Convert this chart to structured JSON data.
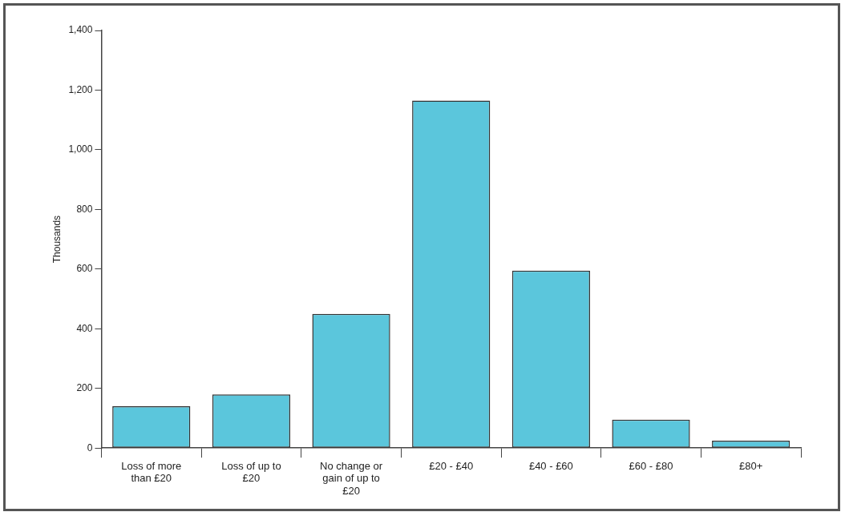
{
  "chart_data": {
    "type": "bar",
    "ylabel": "Thousands",
    "categories": [
      "Loss of more than £20",
      "Loss of up to £20",
      "No change or gain of up to £20",
      "£20 - £40",
      "£40 - £60",
      "£60 - £80",
      "£80+"
    ],
    "values": [
      140,
      180,
      450,
      1165,
      595,
      95,
      25
    ],
    "color": "#5bc6dc",
    "ylim": [
      0,
      1400
    ],
    "yticks": [
      0,
      200,
      400,
      600,
      800,
      {
        "value": 1000,
        "label": "1,000"
      },
      {
        "value": 1200,
        "label": "1,200"
      },
      {
        "value": 1400,
        "label": "1,400"
      }
    ],
    "grid": false,
    "legend": false
  }
}
